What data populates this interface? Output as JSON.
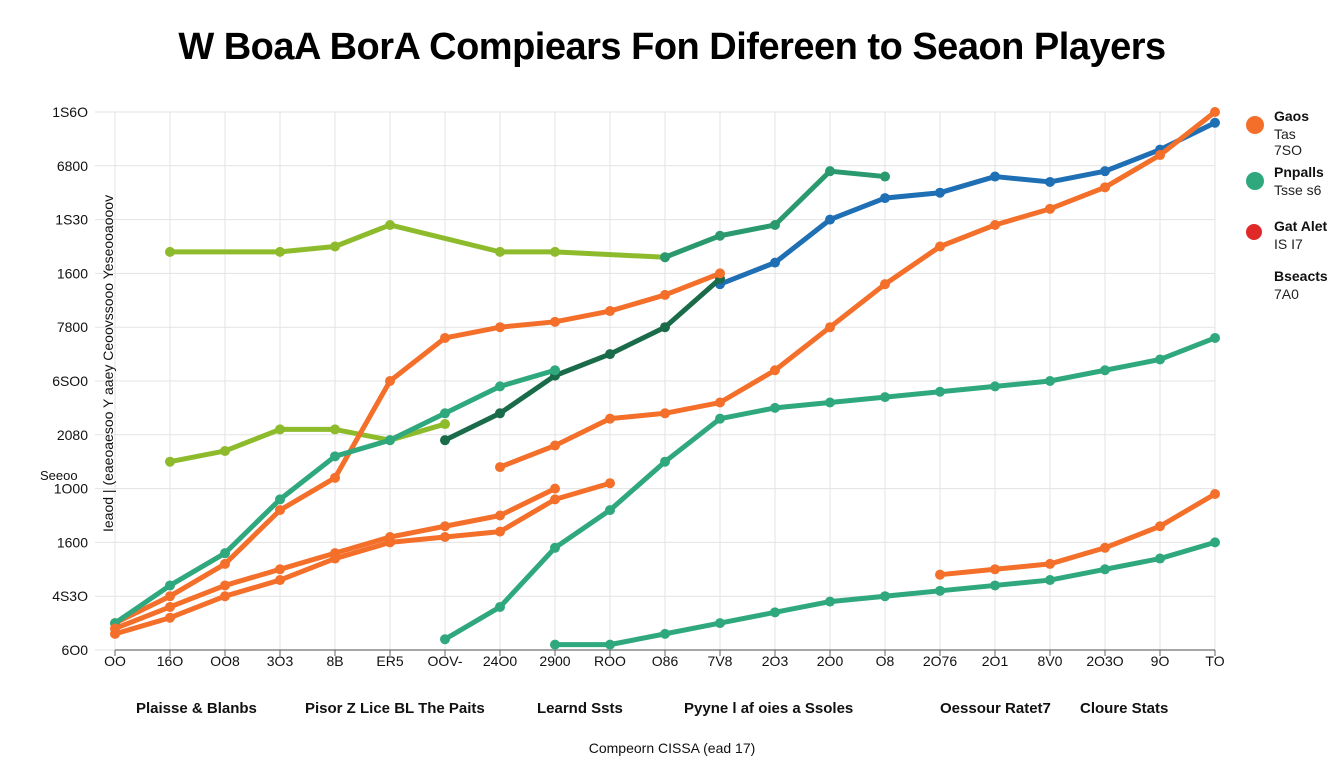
{
  "title": "W BoaA BorA Compiears Fon Difereen  to Seaon Players",
  "chart_data": {
    "type": "line",
    "title": "W BoaA BorA Compiears Fon Difereen  to Seaon Players",
    "xlabel": "Compeorn CISSA (ead 17)",
    "ylabel": "Ieaod | (eaeoaesoo Y aaey Ceoovssooo Yeseooaooov",
    "ylabel_aux": "Seeoo",
    "y_ticks": [
      "6O0",
      "4S3O",
      "1600",
      "1O00",
      "2080",
      "6SO0",
      "7800",
      "1600",
      "1S30",
      "6800",
      "1S6O"
    ],
    "x_ticks": [
      "OO",
      "16O",
      "OO8",
      "3O3",
      "8B",
      "ER5",
      "OOV-",
      "24O0",
      "2900",
      "ROO",
      "O86",
      "7V8",
      "2O3",
      "2O0",
      "O8",
      "2O76",
      "2O1",
      "8V0",
      "2O3O",
      "9O",
      "TO"
    ],
    "x_groups": [
      "Plaisse & Blanbs",
      "Pisor Z Lice BL The Paits",
      "Learnd Ssts",
      "Pyyne l af oies a Ssoles",
      "Oessour Ratet7",
      "Cloure Stats"
    ],
    "legend": [
      {
        "name": "Gaos",
        "values": [
          "Tas",
          "7SO"
        ],
        "color": "#f36f2a"
      },
      {
        "name": "Pnpalls",
        "values": [
          "Tsse s6"
        ],
        "color": "#2fa87e"
      },
      {
        "name": "Gat Alet",
        "values": [
          "IS I7"
        ],
        "color": "#e02a2a"
      },
      {
        "name": "Bseacts",
        "values": [
          "7A0"
        ],
        "color": null
      }
    ],
    "ylim": [
      0,
      10
    ],
    "xlim": [
      0,
      20
    ],
    "grid": true,
    "legend_position": "right",
    "series": [
      {
        "color": "#8dbb2c",
        "x": [
          1,
          3,
          4,
          5,
          7,
          8,
          10
        ],
        "y": [
          7.4,
          7.4,
          7.5,
          7.9,
          7.4,
          7.4,
          7.3
        ]
      },
      {
        "color": "#2a9a6e",
        "x": [
          10,
          11,
          12,
          13,
          14
        ],
        "y": [
          7.3,
          7.7,
          7.9,
          8.9,
          8.8
        ]
      },
      {
        "color": "#1f6fb5",
        "x": [
          11,
          12,
          13,
          14,
          15,
          16,
          17,
          18,
          19,
          20
        ],
        "y": [
          6.8,
          7.2,
          8.0,
          8.4,
          8.5,
          8.8,
          8.7,
          8.9,
          9.3,
          9.8
        ]
      },
      {
        "color": "#8dbb2c",
        "x": [
          1,
          2,
          3,
          4,
          5,
          6
        ],
        "y": [
          3.5,
          3.7,
          4.1,
          4.1,
          3.9,
          4.2
        ]
      },
      {
        "color": "#1a6b49",
        "x": [
          6,
          7,
          8,
          9,
          10,
          11
        ],
        "y": [
          3.9,
          4.4,
          5.1,
          5.5,
          6.0,
          6.9
        ]
      },
      {
        "color": "#f36f2a",
        "x": [
          0,
          1,
          2,
          3,
          4,
          5,
          6,
          7,
          8,
          9,
          10,
          11
        ],
        "y": [
          0.5,
          1.0,
          1.6,
          2.6,
          3.2,
          5.0,
          5.8,
          6.0,
          6.1,
          6.3,
          6.6,
          7.0
        ]
      },
      {
        "color": "#2fa87e",
        "x": [
          0,
          1,
          2,
          3,
          4,
          5,
          6,
          7,
          8
        ],
        "y": [
          0.5,
          1.2,
          1.8,
          2.8,
          3.6,
          3.9,
          4.4,
          4.9,
          5.2
        ]
      },
      {
        "color": "#f36f2a",
        "x": [
          7,
          8,
          9,
          10,
          11,
          12,
          13,
          14,
          15,
          16,
          17,
          18,
          19,
          20
        ],
        "y": [
          3.4,
          3.8,
          4.3,
          4.4,
          4.6,
          5.2,
          6.0,
          6.8,
          7.5,
          7.9,
          8.2,
          8.6,
          9.2,
          10.0
        ]
      },
      {
        "color": "#f36f2a",
        "x": [
          0,
          1,
          2,
          3,
          4,
          5,
          6,
          7,
          8
        ],
        "y": [
          0.4,
          0.8,
          1.2,
          1.5,
          1.8,
          2.1,
          2.3,
          2.5,
          3.0
        ]
      },
      {
        "color": "#f36f2a",
        "x": [
          0,
          1,
          2,
          3,
          4,
          5,
          6,
          7,
          8,
          9
        ],
        "y": [
          0.3,
          0.6,
          1.0,
          1.3,
          1.7,
          2.0,
          2.1,
          2.2,
          2.8,
          3.1
        ]
      },
      {
        "color": "#2fa87e",
        "x": [
          6,
          7,
          8,
          9,
          10,
          11,
          12,
          13,
          14,
          15,
          16,
          17,
          18,
          19,
          20
        ],
        "y": [
          0.2,
          0.8,
          1.9,
          2.6,
          3.5,
          4.3,
          4.5,
          4.6,
          4.7,
          4.8,
          4.9,
          5.0,
          5.2,
          5.4,
          5.8
        ]
      },
      {
        "color": "#2fa87e",
        "x": [
          8,
          9,
          10,
          11,
          12,
          13,
          14,
          15,
          16,
          17,
          18,
          19,
          20
        ],
        "y": [
          0.1,
          0.1,
          0.3,
          0.5,
          0.7,
          0.9,
          1.0,
          1.1,
          1.2,
          1.3,
          1.5,
          1.7,
          2.0
        ]
      },
      {
        "color": "#f36f2a",
        "x": [
          15,
          16,
          17,
          18,
          19,
          20
        ],
        "y": [
          1.4,
          1.5,
          1.6,
          1.9,
          2.3,
          2.9
        ]
      }
    ]
  }
}
